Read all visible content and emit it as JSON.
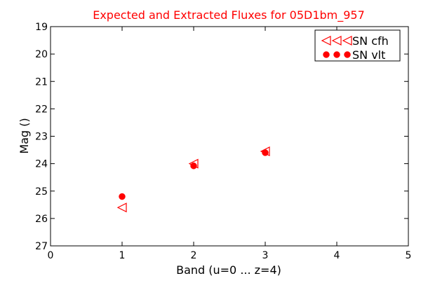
{
  "chart_data": {
    "type": "scatter",
    "title": "Expected and Extracted Fluxes for 05D1bm_957",
    "title_color": "#ff0000",
    "xlabel": "Band (u=0 ... z=4)",
    "ylabel": "Mag ()",
    "xlim": [
      0,
      5
    ],
    "ylim": [
      27,
      19
    ],
    "y_inverted": true,
    "grid": false,
    "x_ticks": [
      "0",
      "1",
      "2",
      "3",
      "4",
      "5"
    ],
    "y_ticks": [
      "19",
      "20",
      "21",
      "22",
      "23",
      "24",
      "25",
      "26",
      "27"
    ],
    "legend_position": "top-right",
    "series": [
      {
        "name": "SN cfh",
        "marker": "triangle-left-open",
        "color": "#ff0000",
        "x": [
          1,
          2,
          3
        ],
        "y": [
          25.6,
          24.0,
          23.55
        ]
      },
      {
        "name": "SN vlt",
        "marker": "circle-filled",
        "color": "#ff0000",
        "x": [
          1,
          2,
          3
        ],
        "y": [
          25.2,
          24.08,
          23.6
        ]
      }
    ]
  }
}
